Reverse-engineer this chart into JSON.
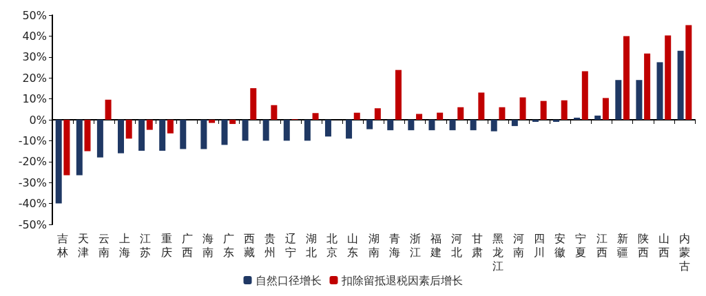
{
  "chart_data": {
    "type": "bar",
    "categories": [
      "吉林",
      "天津",
      "云南",
      "上海",
      "江苏",
      "重庆",
      "广西",
      "海南",
      "广东",
      "西藏",
      "贵州",
      "辽宁",
      "湖北",
      "北京",
      "山东",
      "湖南",
      "青海",
      "浙江",
      "福建",
      "河北",
      "甘肃",
      "黑龙江",
      "河南",
      "四川",
      "安徽",
      "宁夏",
      "江西",
      "新疆",
      "陕西",
      "山西",
      "内蒙古"
    ],
    "series": [
      {
        "name": "自然口径增长",
        "color": "#1f3864",
        "values": [
          -40,
          -26.5,
          -18,
          -16,
          -14.8,
          -14.8,
          -14,
          -14,
          -12,
          -10,
          -10,
          -10,
          -10,
          -8,
          -9,
          -4.5,
          -5,
          -5,
          -5,
          -5,
          -5,
          -5.5,
          -3,
          -1,
          -1,
          1,
          2,
          19,
          19,
          27.5,
          33
        ]
      },
      {
        "name": "扣除留抵退税因素后增长",
        "color": "#c00000",
        "values": [
          -26.5,
          -15,
          9.6,
          -9,
          -4.8,
          -6.5,
          0,
          -1.5,
          -2,
          15.1,
          7,
          0.3,
          3.2,
          0,
          3.4,
          5.5,
          23.8,
          2.8,
          3.4,
          6,
          13,
          6,
          10.7,
          9,
          9.3,
          23.2,
          10.4,
          40,
          31.7,
          40.3,
          45.2
        ]
      }
    ],
    "ylim": [
      -50,
      50
    ],
    "yticks": [
      {
        "value": -50,
        "label": "-50%"
      },
      {
        "value": -40,
        "label": "-40%"
      },
      {
        "value": -30,
        "label": "-30%"
      },
      {
        "value": -20,
        "label": "-20%"
      },
      {
        "value": -10,
        "label": "-10%"
      },
      {
        "value": 0,
        "label": "0%"
      },
      {
        "value": 10,
        "label": "10%"
      },
      {
        "value": 20,
        "label": "20%"
      },
      {
        "value": 30,
        "label": "30%"
      },
      {
        "value": 40,
        "label": "40%"
      },
      {
        "value": 50,
        "label": "50%"
      }
    ],
    "legend": "bottom"
  }
}
